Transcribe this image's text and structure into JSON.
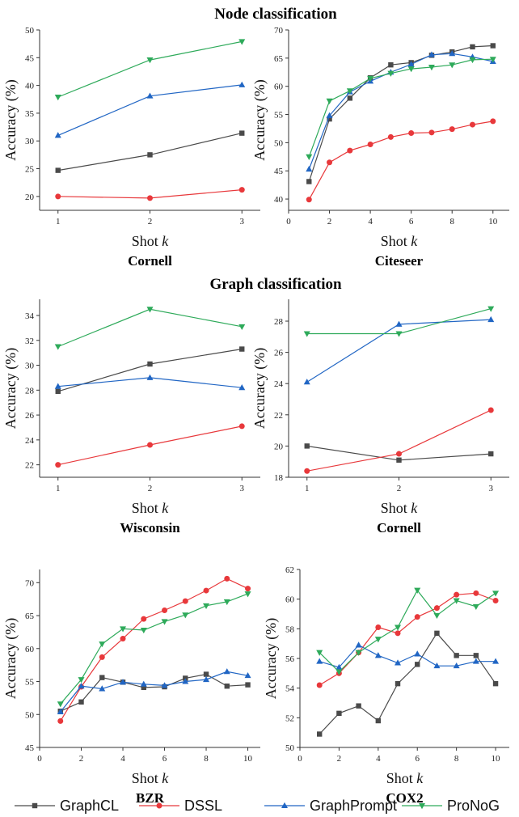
{
  "headings": [
    "Node classification",
    "Graph classification"
  ],
  "legend": [
    {
      "name": "GraphCL",
      "color": "#4a4a4a",
      "marker": "square"
    },
    {
      "name": "DSSL",
      "color": "#e8383b",
      "marker": "circle"
    },
    {
      "name": "GraphPrompt",
      "color": "#2166c4",
      "marker": "triangle-up"
    },
    {
      "name": "ProNoG",
      "color": "#2eaa5a",
      "marker": "triangle-down"
    }
  ],
  "chart_data": [
    {
      "type": "line",
      "title": "Cornell",
      "xlabel": "Shot k",
      "ylabel": "Accuracy (%)",
      "x": [
        1,
        2,
        3
      ],
      "xlim": [
        0.8,
        3.2
      ],
      "ylim": [
        17.5,
        50
      ],
      "xticks": [
        1,
        2,
        3
      ],
      "yticks": [
        20,
        25,
        30,
        35,
        40,
        45,
        50
      ],
      "series": [
        {
          "name": "GraphCL",
          "values": [
            24.7,
            27.5,
            31.4
          ]
        },
        {
          "name": "DSSL",
          "values": [
            20.0,
            19.7,
            21.2
          ]
        },
        {
          "name": "GraphPrompt",
          "values": [
            31.0,
            38.1,
            40.1
          ]
        },
        {
          "name": "ProNoG",
          "values": [
            37.9,
            44.6,
            47.9
          ]
        }
      ]
    },
    {
      "type": "line",
      "title": "Citeseer",
      "xlabel": "Shot k",
      "ylabel": "Accuracy (%)",
      "x": [
        1,
        2,
        3,
        4,
        5,
        6,
        7,
        8,
        9,
        10
      ],
      "xlim": [
        0,
        10.8
      ],
      "ylim": [
        38,
        70
      ],
      "xticks": [
        0,
        2,
        4,
        6,
        8,
        10
      ],
      "yticks": [
        40,
        45,
        50,
        55,
        60,
        65,
        70
      ],
      "series": [
        {
          "name": "GraphCL",
          "values": [
            43.1,
            54.2,
            57.9,
            61.5,
            63.8,
            64.2,
            65.5,
            66.1,
            67.0,
            67.2
          ]
        },
        {
          "name": "DSSL",
          "values": [
            39.9,
            46.5,
            48.6,
            49.7,
            51.0,
            51.7,
            51.8,
            52.4,
            53.2,
            53.8
          ]
        },
        {
          "name": "GraphPrompt",
          "values": [
            45.3,
            54.8,
            59.0,
            60.9,
            62.5,
            63.9,
            65.6,
            65.8,
            65.2,
            64.4
          ]
        },
        {
          "name": "ProNoG",
          "values": [
            47.5,
            57.4,
            59.2,
            61.4,
            62.3,
            63.1,
            63.4,
            63.8,
            64.7,
            64.8
          ]
        }
      ]
    },
    {
      "type": "line",
      "title": "Wisconsin",
      "xlabel": "Shot k",
      "ylabel": "Accuracy (%)",
      "x": [
        1,
        2,
        3
      ],
      "xlim": [
        0.8,
        3.2
      ],
      "ylim": [
        21,
        35.3
      ],
      "xticks": [
        1,
        2,
        3
      ],
      "yticks": [
        22,
        24,
        26,
        28,
        30,
        32,
        34
      ],
      "series": [
        {
          "name": "GraphCL",
          "values": [
            27.9,
            30.1,
            31.3
          ]
        },
        {
          "name": "DSSL",
          "values": [
            22.0,
            23.6,
            25.1
          ]
        },
        {
          "name": "GraphPrompt",
          "values": [
            28.3,
            29.0,
            28.2
          ]
        },
        {
          "name": "ProNoG",
          "values": [
            31.5,
            34.5,
            33.1
          ]
        }
      ]
    },
    {
      "type": "line",
      "title": "Cornell",
      "xlabel": "Shot k",
      "ylabel": "Accuracy (%)",
      "x": [
        1,
        2,
        3
      ],
      "xlim": [
        0.8,
        3.2
      ],
      "ylim": [
        18,
        29.4
      ],
      "xticks": [
        1,
        2,
        3
      ],
      "yticks": [
        18,
        20,
        22,
        24,
        26,
        28
      ],
      "series": [
        {
          "name": "GraphCL",
          "values": [
            20.0,
            19.1,
            19.5
          ]
        },
        {
          "name": "DSSL",
          "values": [
            18.4,
            19.5,
            22.3
          ]
        },
        {
          "name": "GraphPrompt",
          "values": [
            24.1,
            27.8,
            28.1
          ]
        },
        {
          "name": "ProNoG",
          "values": [
            27.2,
            27.2,
            28.8
          ]
        }
      ]
    },
    {
      "type": "line",
      "title": "BZR",
      "xlabel": "Shot k",
      "ylabel": "Accuracy (%)",
      "x": [
        1,
        2,
        3,
        4,
        5,
        6,
        7,
        8,
        9,
        10
      ],
      "xlim": [
        0,
        10.6
      ],
      "ylim": [
        45,
        72
      ],
      "xticks": [
        0,
        2,
        4,
        6,
        8,
        10
      ],
      "yticks": [
        45,
        50,
        55,
        60,
        65,
        70
      ],
      "series": [
        {
          "name": "GraphCL",
          "values": [
            50.5,
            51.9,
            55.6,
            54.9,
            54.1,
            54.2,
            55.5,
            56.1,
            54.3,
            54.5
          ]
        },
        {
          "name": "DSSL",
          "values": [
            49.0,
            54.2,
            58.7,
            61.5,
            64.5,
            65.8,
            67.2,
            68.8,
            70.6,
            69.1
          ]
        },
        {
          "name": "GraphPrompt",
          "values": [
            50.4,
            54.3,
            53.9,
            54.9,
            54.6,
            54.4,
            55.0,
            55.3,
            56.5,
            55.9
          ]
        },
        {
          "name": "ProNoG",
          "values": [
            51.6,
            55.3,
            60.7,
            63.0,
            62.8,
            64.1,
            65.1,
            66.5,
            67.1,
            68.3
          ]
        }
      ]
    },
    {
      "type": "line",
      "title": "COX2",
      "xlabel": "Shot k",
      "ylabel": "Accuracy (%)",
      "x": [
        1,
        2,
        3,
        4,
        5,
        6,
        7,
        8,
        9,
        10
      ],
      "xlim": [
        0,
        10.7
      ],
      "ylim": [
        50,
        62
      ],
      "xticks": [
        0,
        2,
        4,
        6,
        8,
        10
      ],
      "yticks": [
        50,
        52,
        54,
        56,
        58,
        60,
        62
      ],
      "series": [
        {
          "name": "GraphCL",
          "values": [
            50.9,
            52.3,
            52.8,
            51.8,
            54.3,
            55.6,
            57.7,
            56.2,
            56.2,
            54.3
          ]
        },
        {
          "name": "DSSL",
          "values": [
            54.2,
            55.0,
            56.4,
            58.1,
            57.7,
            58.8,
            59.4,
            60.3,
            60.4,
            59.9
          ]
        },
        {
          "name": "GraphPrompt",
          "values": [
            55.8,
            55.4,
            56.9,
            56.2,
            55.7,
            56.3,
            55.5,
            55.5,
            55.8,
            55.8
          ]
        },
        {
          "name": "ProNoG",
          "values": [
            56.4,
            55.1,
            56.4,
            57.3,
            58.1,
            60.6,
            58.9,
            59.9,
            59.5,
            60.4
          ]
        }
      ]
    }
  ]
}
